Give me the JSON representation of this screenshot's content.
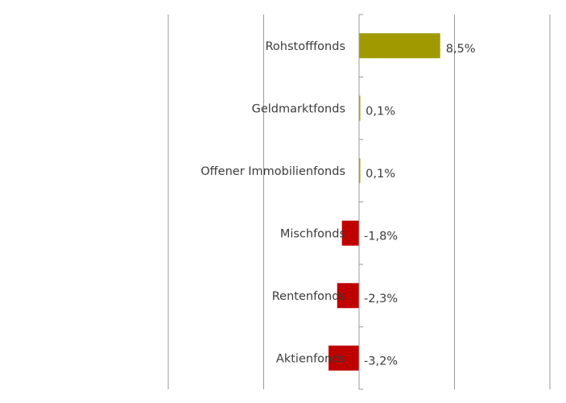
{
  "chart_data": {
    "type": "bar",
    "orientation": "horizontal",
    "title": "",
    "xlabel": "",
    "ylabel": "",
    "categories": [
      "Rohstofffonds",
      "Geldmarktfonds",
      "Offener Immobilienfonds",
      "Mischfonds",
      "Rentenfonds",
      "Aktienfonds"
    ],
    "values": [
      8.5,
      0.1,
      0.1,
      -1.8,
      -2.3,
      -3.2
    ],
    "value_labels": [
      "8,5%",
      "0,1%",
      "0,1%",
      "-1,8%",
      "-2,3%",
      "-3,2%"
    ],
    "xlim": [
      -20,
      20
    ],
    "grid": true,
    "legend": "none",
    "colors": {
      "positive": "#a09a00",
      "negative": "#c00000",
      "grid": "#9a9a9a",
      "text": "#3b3b3b"
    }
  }
}
